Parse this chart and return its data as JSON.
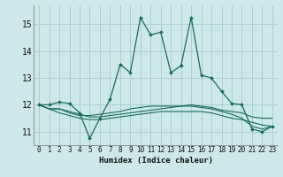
{
  "xlabel": "Humidex (Indice chaleur)",
  "background_color": "#cde8e8",
  "grid_color": "#aacfcf",
  "line_color": "#1a6b5a",
  "xlim": [
    -0.5,
    23.5
  ],
  "ylim": [
    10.5,
    15.7
  ],
  "yticks": [
    11,
    12,
    13,
    14,
    15
  ],
  "xticks": [
    0,
    1,
    2,
    3,
    4,
    5,
    6,
    7,
    8,
    9,
    10,
    11,
    12,
    13,
    14,
    15,
    16,
    17,
    18,
    19,
    20,
    21,
    22,
    23
  ],
  "series": [
    [
      12.0,
      12.0,
      12.1,
      12.05,
      11.7,
      10.75,
      11.5,
      12.2,
      13.5,
      13.2,
      15.25,
      14.6,
      14.7,
      13.2,
      13.45,
      15.25,
      13.1,
      13.0,
      12.5,
      12.05,
      12.0,
      11.1,
      11.0,
      11.2
    ],
    [
      12.0,
      11.85,
      11.85,
      11.75,
      11.65,
      11.55,
      11.55,
      11.6,
      11.65,
      11.7,
      11.75,
      11.8,
      11.85,
      11.9,
      11.95,
      12.0,
      11.95,
      11.9,
      11.8,
      11.75,
      11.7,
      11.55,
      11.5,
      11.5
    ],
    [
      12.0,
      11.85,
      11.85,
      11.7,
      11.6,
      11.6,
      11.65,
      11.7,
      11.75,
      11.85,
      11.9,
      11.95,
      11.95,
      11.95,
      11.95,
      11.95,
      11.9,
      11.85,
      11.75,
      11.65,
      11.5,
      11.2,
      11.1,
      11.2
    ],
    [
      12.0,
      11.85,
      11.7,
      11.6,
      11.5,
      11.45,
      11.45,
      11.5,
      11.55,
      11.6,
      11.65,
      11.7,
      11.75,
      11.75,
      11.75,
      11.75,
      11.75,
      11.7,
      11.6,
      11.5,
      11.45,
      11.35,
      11.25,
      11.2
    ]
  ]
}
